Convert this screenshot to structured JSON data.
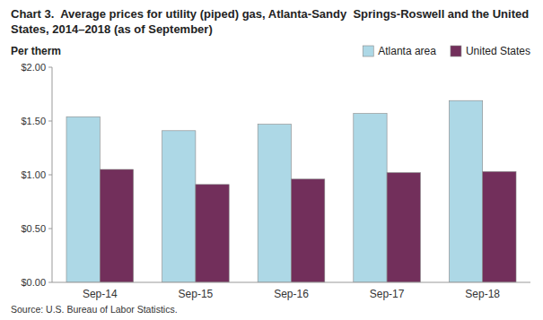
{
  "chart_data": {
    "type": "bar",
    "title": "Chart 3.  Average prices for utility (piped) gas, Atlanta-Sandy  Springs-Roswell and the United States, 2014–2018 (as of September)",
    "y_label": "Per therm",
    "source": "Source: U.S. Bureau of Labor Statistics.",
    "categories": [
      "Sep-14",
      "Sep-15",
      "Sep-16",
      "Sep-17",
      "Sep-18"
    ],
    "series": [
      {
        "name": "Atlanta area",
        "color": "#ADD8E6",
        "values": [
          1.54,
          1.41,
          1.47,
          1.57,
          1.69
        ]
      },
      {
        "name": "United States",
        "color": "#722F5B",
        "values": [
          1.05,
          0.91,
          0.96,
          1.02,
          1.03
        ]
      }
    ],
    "ylim": [
      0.0,
      2.0
    ],
    "yticks": [
      {
        "value": 0.0,
        "label": "$0.00"
      },
      {
        "value": 0.5,
        "label": "$0.50"
      },
      {
        "value": 1.0,
        "label": "$1.00"
      },
      {
        "value": 1.5,
        "label": "$1.50"
      },
      {
        "value": 2.0,
        "label": "$2.00"
      }
    ],
    "grid": false,
    "legend": "upper right"
  }
}
